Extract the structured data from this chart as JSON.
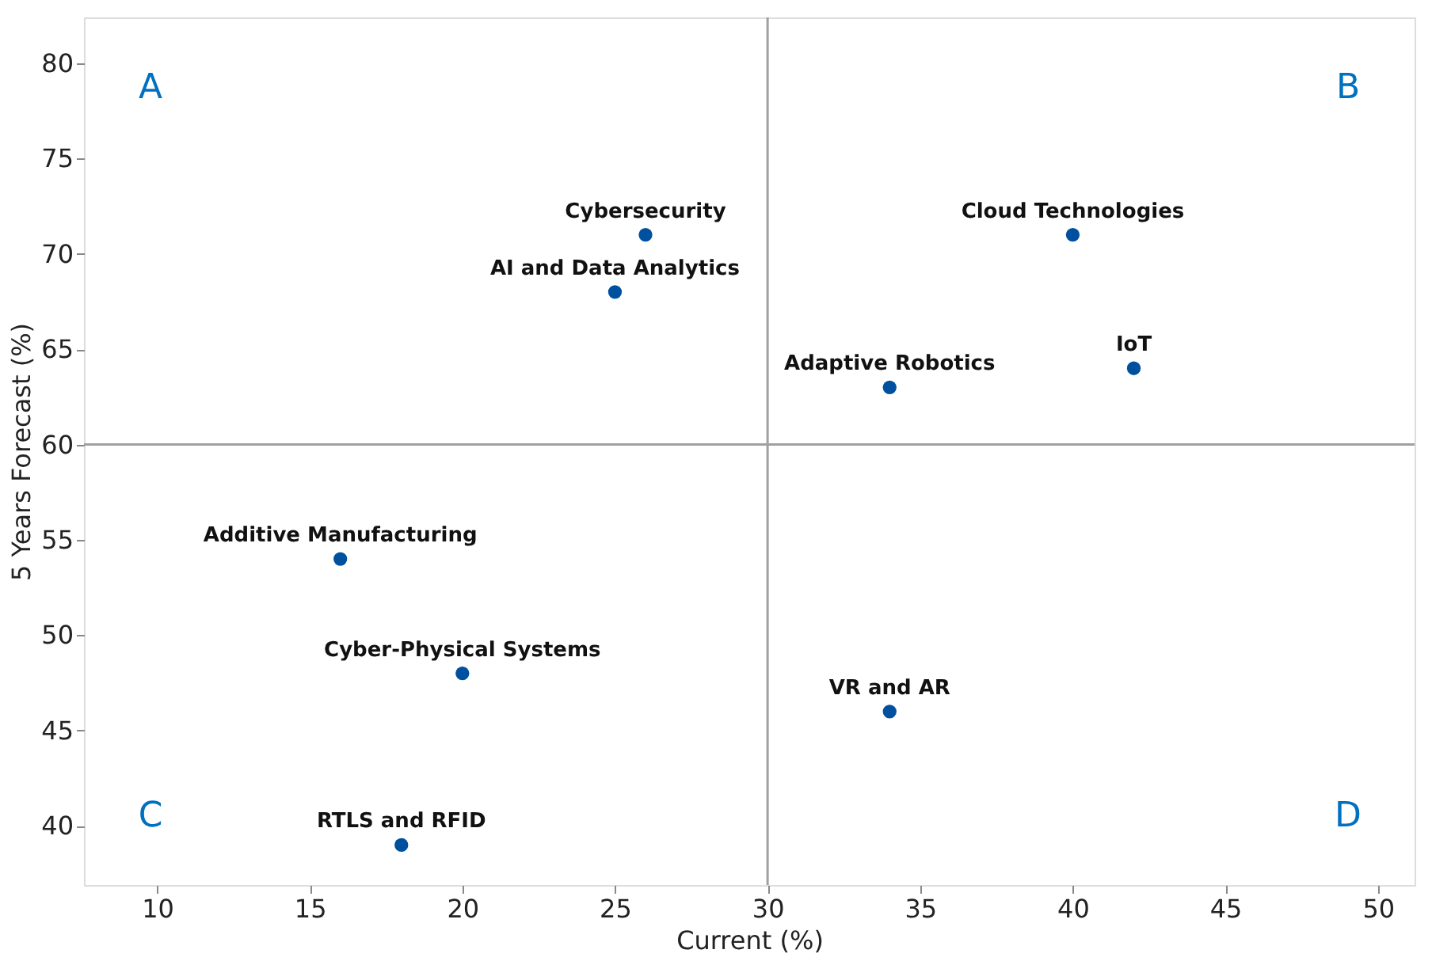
{
  "chart_data": {
    "type": "scatter",
    "xlabel": "Current (%)",
    "ylabel": "5 Years Forecast (%)",
    "xlim": [
      7.6,
      51.2
    ],
    "ylim": [
      36.9,
      82.4
    ],
    "xticks": [
      10,
      15,
      20,
      25,
      30,
      35,
      40,
      45,
      50
    ],
    "yticks": [
      40,
      45,
      50,
      55,
      60,
      65,
      70,
      75,
      80
    ],
    "grid": false,
    "legend": false,
    "marker": "circle",
    "series": [
      {
        "name": "Cybersecurity",
        "color": "#0050a0",
        "x": [
          26
        ],
        "values": [
          71
        ]
      },
      {
        "name": "AI and Data Analytics",
        "color": "#0050a0",
        "x": [
          25
        ],
        "values": [
          68
        ]
      },
      {
        "name": "Cloud Technologies",
        "color": "#0050a0",
        "x": [
          40
        ],
        "values": [
          71
        ]
      },
      {
        "name": "IoT",
        "color": "#0050a0",
        "x": [
          42
        ],
        "values": [
          64
        ]
      },
      {
        "name": "Adaptive Robotics",
        "color": "#0050a0",
        "x": [
          34
        ],
        "values": [
          63
        ]
      },
      {
        "name": "Additive Manufacturing",
        "color": "#0050a0",
        "x": [
          16
        ],
        "values": [
          54
        ]
      },
      {
        "name": "Cyber-Physical Systems",
        "color": "#0050a0",
        "x": [
          20
        ],
        "values": [
          48
        ]
      },
      {
        "name": "VR and AR",
        "color": "#0050a0",
        "x": [
          34
        ],
        "values": [
          46
        ]
      },
      {
        "name": "RTLS and RFID",
        "color": "#0050a0",
        "x": [
          18
        ],
        "values": [
          39
        ]
      }
    ],
    "ref_lines": [
      {
        "axis": "x",
        "value": 30,
        "color": "#a0a0a0"
      },
      {
        "axis": "y",
        "value": 60,
        "color": "#a0a0a0"
      }
    ],
    "annotations": [
      "A",
      "B",
      "C",
      "D"
    ]
  }
}
